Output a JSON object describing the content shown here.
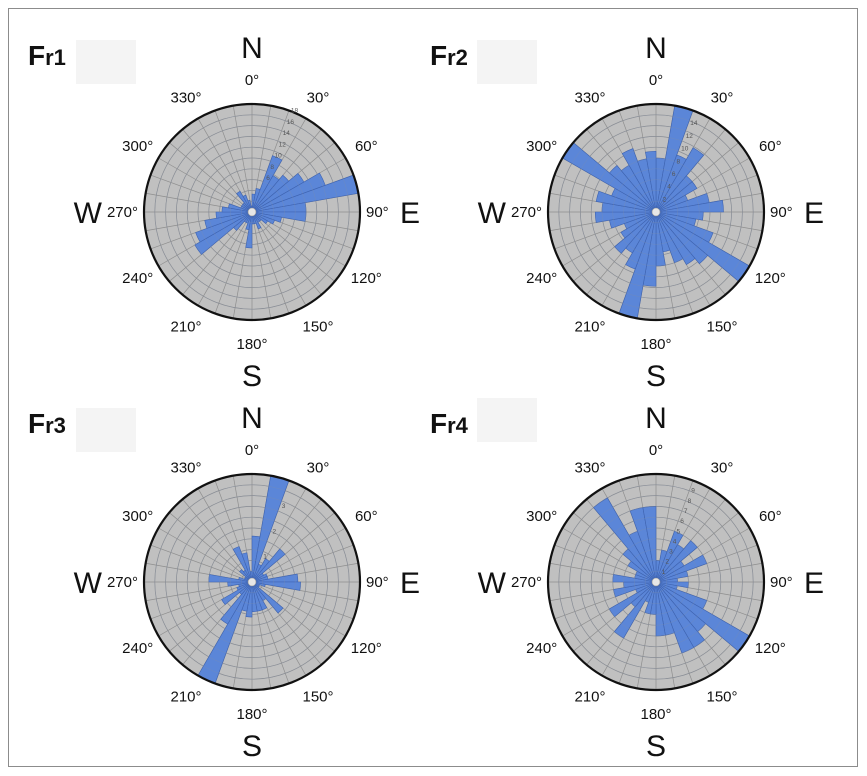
{
  "chart_data": [
    {
      "type": "rose",
      "panel": "Fr1",
      "sector_width_deg": 10,
      "rmax": 18,
      "radial_ticks": [
        "6",
        "8",
        "10",
        "12",
        "14",
        "16",
        "18"
      ],
      "compass": {
        "N": "N",
        "E": "E",
        "S": "S",
        "W": "W"
      },
      "angle_labels": [
        "0°",
        "30°",
        "60°",
        "90°",
        "120°",
        "150°",
        "180°",
        "210°",
        "240°",
        "270°",
        "300°",
        "330°"
      ],
      "values": [
        3,
        4,
        10,
        7,
        8,
        10,
        13,
        18,
        9,
        9,
        5,
        4,
        3,
        2,
        2,
        3,
        2,
        2,
        6,
        3,
        2,
        2,
        4,
        11,
        10,
        8,
        6,
        5,
        4,
        2,
        2,
        2,
        4,
        3,
        2,
        1
      ]
    },
    {
      "type": "rose",
      "panel": "Fr2",
      "sector_width_deg": 10,
      "rmax": 16,
      "radial_ticks": [
        "2",
        "4",
        "6",
        "8",
        "10",
        "12",
        "14"
      ],
      "compass": {
        "N": "N",
        "E": "E",
        "S": "S",
        "W": "W"
      },
      "angle_labels": [
        "0°",
        "30°",
        "60°",
        "90°",
        "120°",
        "150°",
        "180°",
        "210°",
        "240°",
        "270°",
        "300°",
        "330°"
      ],
      "values": [
        8,
        16,
        9,
        11,
        7,
        7,
        5,
        8,
        10,
        7,
        6,
        9,
        16,
        10,
        9,
        8,
        6,
        8,
        11,
        16,
        9,
        7,
        8,
        6,
        5,
        7,
        9,
        8,
        9,
        7,
        16,
        9,
        8,
        10,
        8,
        9
      ]
    },
    {
      "type": "rose",
      "panel": "Fr3",
      "sector_width_deg": 10,
      "rmax": 4,
      "radial_ticks": [
        "1",
        "2",
        "3"
      ],
      "compass": {
        "N": "N",
        "E": "E",
        "S": "S",
        "W": "W"
      },
      "angle_labels": [
        "0°",
        "30°",
        "60°",
        "90°",
        "120°",
        "150°",
        "180°",
        "210°",
        "240°",
        "270°",
        "300°",
        "330°"
      ],
      "values": [
        1.7,
        4,
        0.7,
        1,
        1.6,
        0.5,
        0.6,
        0.6,
        1.7,
        1.8,
        0.5,
        0.3,
        0.3,
        1.5,
        0.8,
        1.1,
        1.1,
        1.1,
        1.3,
        1.1,
        4,
        1.8,
        0.6,
        1.3,
        0.6,
        0.5,
        0.9,
        1.6,
        0.5,
        0.3,
        0.3,
        0.6,
        0.5,
        1.4,
        1.1,
        0.4
      ]
    },
    {
      "type": "rose",
      "panel": "Fr4",
      "sector_width_deg": 10,
      "rmax": 10,
      "radial_ticks": [
        "1",
        "2",
        "3",
        "4",
        "5",
        "6",
        "7",
        "8",
        "9"
      ],
      "compass": {
        "N": "N",
        "E": "E",
        "S": "S",
        "W": "W"
      },
      "angle_labels": [
        "0°",
        "30°",
        "60°",
        "90°",
        "120°",
        "150°",
        "180°",
        "210°",
        "240°",
        "270°",
        "300°",
        "330°"
      ],
      "values": [
        2,
        3,
        5,
        4,
        5,
        3,
        5,
        3,
        2,
        3,
        2,
        5,
        10,
        6,
        7,
        7,
        5,
        5,
        3,
        3,
        2,
        6,
        3,
        5,
        2,
        4,
        3,
        4,
        2,
        2,
        3,
        4,
        9,
        5,
        7,
        7
      ]
    }
  ],
  "style": {
    "bar_color": "#5b86d8",
    "bar_edge": "#3e63b0",
    "disk_color": "#c0c0c0",
    "grid_color": "#8e8e8e",
    "rim_color": "#111111"
  }
}
